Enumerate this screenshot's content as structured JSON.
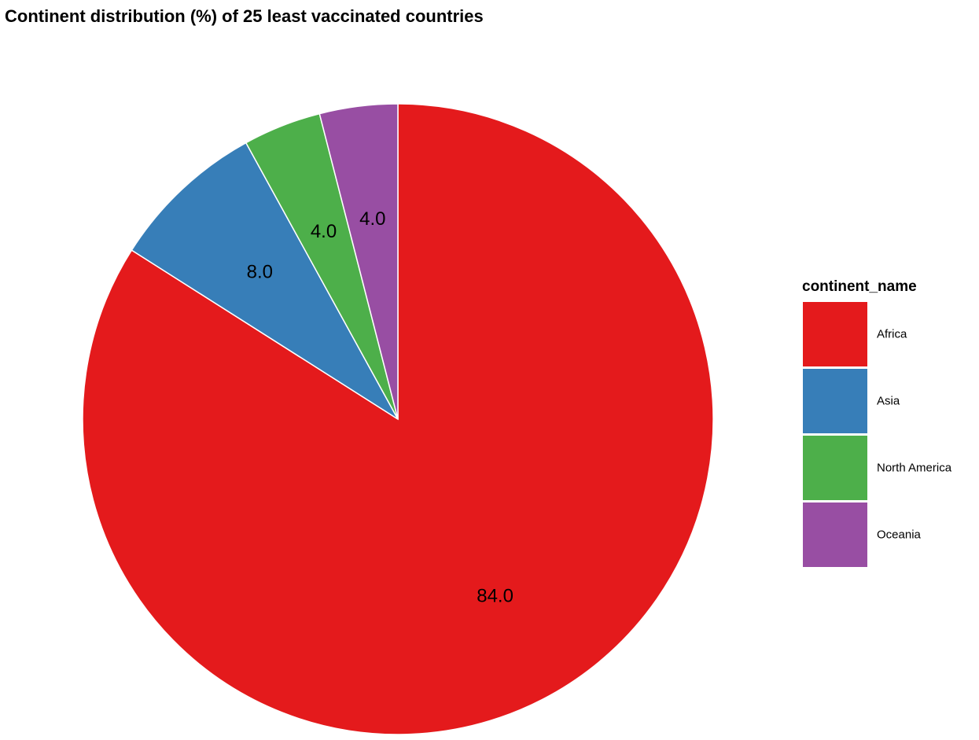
{
  "chart_data": {
    "type": "pie",
    "title": "Continent distribution (%) of 25 least vaccinated countries",
    "legend_title": "continent_name",
    "legend_position": "right",
    "value_labels": true,
    "slices": [
      {
        "name": "Africa",
        "value": 84.0,
        "label": "84.0",
        "color": "#E41A1C"
      },
      {
        "name": "Asia",
        "value": 8.0,
        "label": "8.0",
        "color": "#377EB8"
      },
      {
        "name": "North America",
        "value": 4.0,
        "label": "4.0",
        "color": "#4DAF4A"
      },
      {
        "name": "Oceania",
        "value": 4.0,
        "label": "4.0",
        "color": "#984EA3"
      }
    ]
  }
}
